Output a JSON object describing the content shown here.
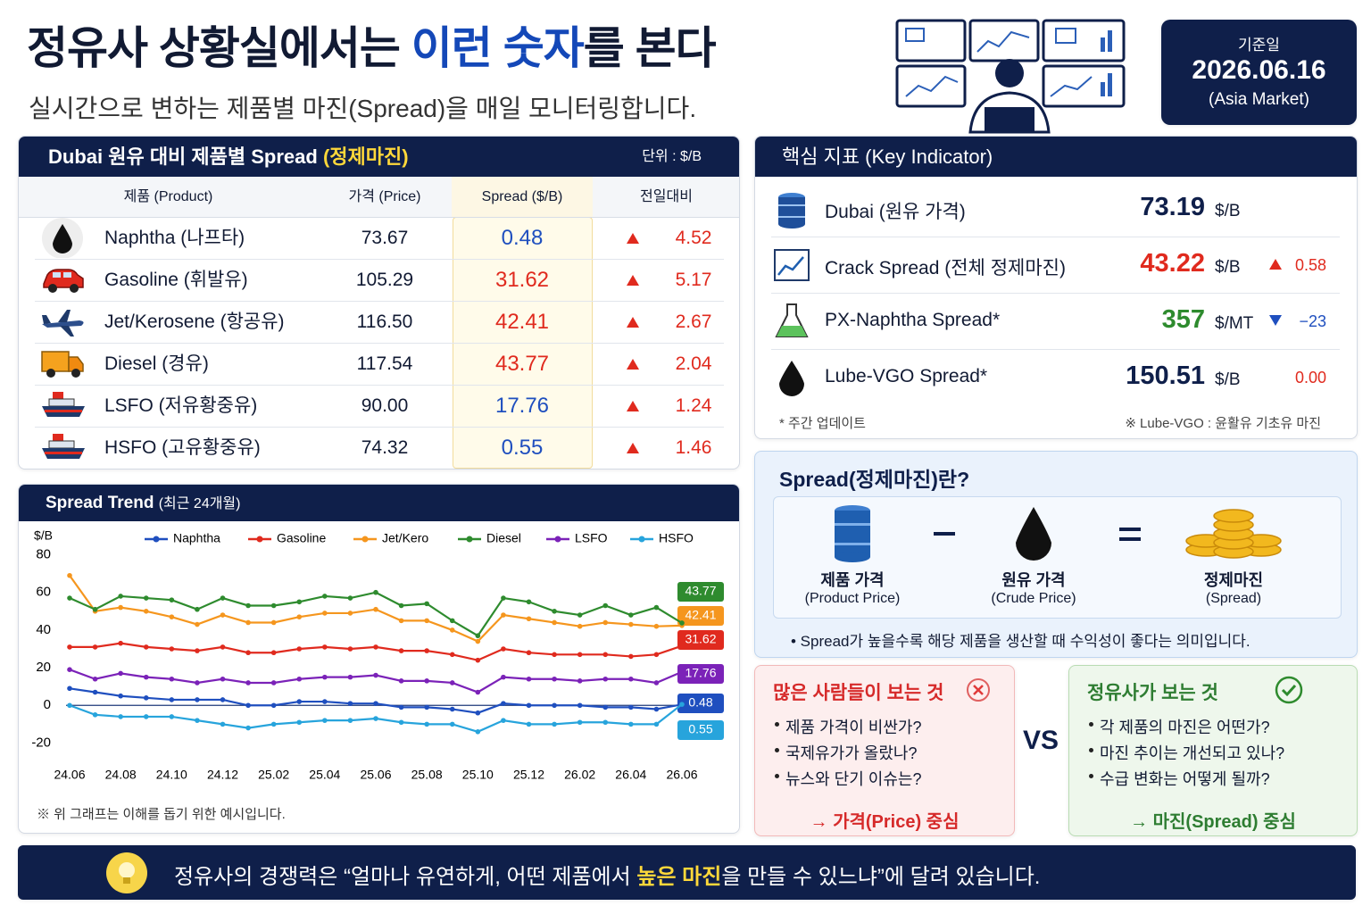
{
  "header": {
    "title_parts": [
      "정유사 상황실에서는 ",
      "이런 숫자",
      "를 본다"
    ],
    "subtitle": "실시간으로 변하는 제품별 마진(Spread)을 매일 모니터링합니다."
  },
  "date_box": {
    "label": "기준일",
    "date": "2026.06.16",
    "market": "(Asia Market)"
  },
  "spread_table": {
    "title": "Dubai 원유 대비 제품별 Spread ",
    "title_highlight": "(정제마진)",
    "unit": "단위 : $/B",
    "columns": [
      "제품 (Product)",
      "가격 (Price)",
      "Spread ($/B)",
      "전일대비"
    ],
    "rows": [
      {
        "product": "Naphtha (나프타)",
        "price": "73.67",
        "spread": "0.48",
        "spread_color": "#1f4fbf",
        "change": "4.52",
        "direction": "up"
      },
      {
        "product": "Gasoline (휘발유)",
        "price": "105.29",
        "spread": "31.62",
        "spread_color": "#e02a1e",
        "change": "5.17",
        "direction": "up"
      },
      {
        "product": "Jet/Kerosene (항공유)",
        "price": "116.50",
        "spread": "42.41",
        "spread_color": "#e02a1e",
        "change": "2.67",
        "direction": "up"
      },
      {
        "product": "Diesel (경유)",
        "price": "117.54",
        "spread": "43.77",
        "spread_color": "#e02a1e",
        "change": "2.04",
        "direction": "up"
      },
      {
        "product": "LSFO (저유황중유)",
        "price": "90.00",
        "spread": "17.76",
        "spread_color": "#1f4fbf",
        "change": "1.24",
        "direction": "up"
      },
      {
        "product": "HSFO (고유황중유)",
        "price": "74.32",
        "spread": "0.55",
        "spread_color": "#1f4fbf",
        "change": "1.46",
        "direction": "up"
      }
    ]
  },
  "key_indicators": {
    "title": "핵심 지표 (Key Indicator)",
    "items": [
      {
        "name": "Dubai (원유 가격)",
        "value": "73.19",
        "unit": "$/B",
        "value_color": "#0f1f4a"
      },
      {
        "name": "Crack Spread (전체 정제마진)",
        "value": "43.22",
        "unit": "$/B",
        "value_color": "#e02a1e",
        "change": "0.58",
        "direction": "up",
        "change_color": "#e02a1e"
      },
      {
        "name": "PX-Naphtha Spread*",
        "value": "357",
        "unit": "$/MT",
        "value_color": "#2e8b2e",
        "change": "−23",
        "direction": "down",
        "change_color": "#1f4fbf"
      },
      {
        "name": "Lube-VGO Spread*",
        "value": "150.51",
        "unit": "$/B",
        "value_color": "#0f1f4a",
        "change": "0.00",
        "direction": "none",
        "change_color": "#e02a1e"
      }
    ],
    "footnote_left": "* 주간 업데이트",
    "footnote_right": "※ Lube-VGO : 윤활유 기초유 마진"
  },
  "explain": {
    "title": "Spread(정제마진)란?",
    "items": [
      {
        "label": "제품 가격",
        "sub": "(Product Price)"
      },
      {
        "label": "원유 가격",
        "sub": "(Crude Price)"
      },
      {
        "label": "정제마진",
        "sub": "(Spread)"
      }
    ],
    "note": "• Spread가 높을수록 해당 제품을 생산할 때 수익성이 좋다는 의미입니다."
  },
  "compare": {
    "left": {
      "title": "많은 사람들이 보는 것",
      "bullets": [
        "제품 가격이 비싼가?",
        "국제유가가 올랐나?",
        "뉴스와 단기 이슈는?"
      ],
      "conclusion": "→ 가격(Price) 중심"
    },
    "vs": "VS",
    "right": {
      "title": "정유사가 보는 것",
      "bullets": [
        "각 제품의 마진은 어떤가?",
        "마진 추이는 개선되고 있나?",
        "수급 변화는 어떻게 될까?"
      ],
      "conclusion": "→ 마진(Spread) 중심"
    }
  },
  "footer": {
    "parts": [
      "정유사의 경쟁력은 “얼마나 유연하게, 어떤 제품에서 ",
      "높은 마진",
      "을 만들 수 있느냐”에 달려 있습니다."
    ]
  },
  "chart_data": {
    "type": "line",
    "title": "Spread Trend",
    "subtitle": "(최근 24개월)",
    "y_label": "$/B",
    "note": "※ 위 그래프는 이해를 돕기 위한 예시입니다.",
    "categories": [
      "24.06",
      null,
      "24.08",
      null,
      "24.10",
      null,
      "24.12",
      null,
      "25.02",
      null,
      "25.04",
      null,
      "25.06",
      null,
      "25.08",
      null,
      "25.10",
      null,
      "25.12",
      null,
      "26.02",
      null,
      "26.04",
      null,
      "26.06"
    ],
    "ylim": [
      -25,
      85
    ],
    "yticks": [
      -20,
      0,
      20,
      40,
      60,
      80
    ],
    "zero_line": true,
    "grid": false,
    "series": [
      {
        "name": "Naphtha",
        "color": "#1f4fbf",
        "values": [
          9,
          7,
          5,
          4,
          3,
          3,
          3,
          0,
          0,
          2,
          2,
          1,
          1,
          -1,
          -1,
          -2,
          -4,
          1,
          0,
          0,
          0,
          -1,
          -1,
          -2,
          0.48
        ]
      },
      {
        "name": "Gasoline",
        "color": "#e02a1e",
        "values": [
          31,
          31,
          33,
          31,
          30,
          29,
          31,
          28,
          28,
          30,
          31,
          30,
          31,
          29,
          29,
          27,
          24,
          30,
          28,
          27,
          27,
          27,
          26,
          27,
          31.62
        ]
      },
      {
        "name": "Jet/Kero",
        "color": "#f5961e",
        "values": [
          69,
          50,
          52,
          50,
          47,
          43,
          48,
          44,
          44,
          47,
          49,
          49,
          51,
          45,
          45,
          40,
          34,
          48,
          46,
          44,
          42,
          44,
          43,
          42,
          42.41
        ]
      },
      {
        "name": "Diesel",
        "color": "#2e8b2e",
        "values": [
          57,
          51,
          58,
          57,
          56,
          51,
          57,
          53,
          53,
          55,
          58,
          57,
          60,
          53,
          54,
          45,
          37,
          57,
          55,
          50,
          48,
          53,
          48,
          52,
          43.77
        ]
      },
      {
        "name": "LSFO",
        "color": "#7b22b8",
        "values": [
          19,
          14,
          17,
          15,
          14,
          12,
          14,
          12,
          12,
          14,
          15,
          15,
          16,
          13,
          13,
          12,
          7,
          15,
          14,
          14,
          13,
          14,
          14,
          12,
          17.76
        ]
      },
      {
        "name": "HSFO",
        "color": "#27a4dc",
        "values": [
          0,
          -5,
          -6,
          -6,
          -6,
          -8,
          -10,
          -12,
          -10,
          -9,
          -8,
          -8,
          -7,
          -9,
          -10,
          -10,
          -14,
          -8,
          -10,
          -10,
          -9,
          -9,
          -10,
          -10,
          0.55
        ]
      }
    ]
  }
}
